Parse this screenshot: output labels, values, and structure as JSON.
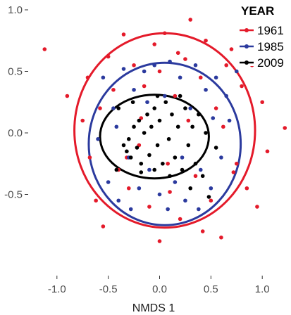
{
  "chart_data": {
    "type": "scatter",
    "title": "",
    "xlabel": "NMDS 1",
    "ylabel": "",
    "xlim": [
      -1.28,
      1.28
    ],
    "ylim": [
      -1.16,
      1.08
    ],
    "x_ticks": [
      -1.0,
      -0.5,
      0.0,
      0.5,
      1.0
    ],
    "x_tick_labels": [
      "-1.0",
      "-0.5",
      "0.0",
      "0.5",
      "1.0"
    ],
    "y_ticks": [
      1.0,
      0.5,
      0.0,
      -0.5
    ],
    "y_tick_labels": [
      "1.0",
      "0.5",
      "0.0",
      "-0.5"
    ],
    "grid": false,
    "legend": {
      "title": "YEAR",
      "position": "top-right",
      "entries": [
        "1961",
        "1985",
        "2009"
      ]
    },
    "series": [
      {
        "name": "1961",
        "color": "#e41a2a",
        "ellipse": {
          "cx": 0.05,
          "cy": 0.02,
          "rx": 0.88,
          "ry": 0.79
        },
        "points": [
          [
            -1.12,
            0.68
          ],
          [
            -0.9,
            0.3
          ],
          [
            -0.75,
            0.1
          ],
          [
            -0.7,
            0.45
          ],
          [
            -0.62,
            -0.55
          ],
          [
            -0.55,
            -0.76
          ],
          [
            -0.5,
            0.62
          ],
          [
            -0.45,
            0.35
          ],
          [
            -0.4,
            -0.3
          ],
          [
            -0.35,
            0.8
          ],
          [
            -0.3,
            -0.45
          ],
          [
            -0.25,
            0.55
          ],
          [
            -0.2,
            -0.1
          ],
          [
            -0.15,
            0.38
          ],
          [
            -0.1,
            -0.6
          ],
          [
            -0.05,
            0.72
          ],
          [
            0.0,
            0.5
          ],
          [
            0.05,
            0.81
          ],
          [
            0.1,
            -0.48
          ],
          [
            0.15,
            0.3
          ],
          [
            0.2,
            -0.7
          ],
          [
            0.25,
            0.6
          ],
          [
            0.3,
            0.92
          ],
          [
            0.35,
            -0.35
          ],
          [
            0.4,
            0.45
          ],
          [
            0.45,
            0.75
          ],
          [
            0.5,
            -0.55
          ],
          [
            0.55,
            0.2
          ],
          [
            0.6,
            -0.85
          ],
          [
            0.65,
            0.55
          ],
          [
            0.7,
            0.68
          ],
          [
            0.75,
            -0.25
          ],
          [
            0.8,
            0.38
          ],
          [
            0.85,
            -0.45
          ],
          [
            0.9,
            0.55
          ],
          [
            0.95,
            -0.6
          ],
          [
            1.0,
            0.25
          ],
          [
            1.05,
            -0.15
          ],
          [
            1.22,
            0.04
          ],
          [
            -0.32,
            -0.2
          ],
          [
            -0.18,
            0.12
          ],
          [
            0.08,
            -0.25
          ],
          [
            0.28,
            0.1
          ],
          [
            0.62,
            0.05
          ],
          [
            0.72,
            -0.32
          ],
          [
            -0.58,
            0.2
          ],
          [
            -0.68,
            -0.2
          ],
          [
            0.18,
            0.65
          ],
          [
            0.42,
            -0.8
          ],
          [
            0.0,
            -0.88
          ]
        ]
      },
      {
        "name": "1985",
        "color": "#2b3a9e",
        "ellipse": {
          "cx": 0.05,
          "cy": -0.09,
          "rx": 0.74,
          "ry": 0.66
        },
        "points": [
          [
            -0.55,
            0.45
          ],
          [
            -0.5,
            -0.4
          ],
          [
            -0.45,
            0.2
          ],
          [
            -0.4,
            -0.55
          ],
          [
            -0.35,
            0.52
          ],
          [
            -0.3,
            -0.2
          ],
          [
            -0.25,
            0.35
          ],
          [
            -0.2,
            -0.45
          ],
          [
            -0.15,
            0.5
          ],
          [
            -0.1,
            -0.3
          ],
          [
            -0.05,
            0.55
          ],
          [
            0.0,
            -0.5
          ],
          [
            0.05,
            0.3
          ],
          [
            0.1,
            0.58
          ],
          [
            0.15,
            -0.4
          ],
          [
            0.2,
            0.45
          ],
          [
            0.25,
            -0.55
          ],
          [
            0.3,
            0.2
          ],
          [
            0.35,
            0.55
          ],
          [
            0.4,
            -0.3
          ],
          [
            0.45,
            0.35
          ],
          [
            0.5,
            -0.45
          ],
          [
            0.55,
            0.45
          ],
          [
            0.6,
            -0.2
          ],
          [
            0.65,
            0.3
          ],
          [
            -0.6,
            -0.05
          ],
          [
            -0.42,
            0.05
          ],
          [
            -0.28,
            -0.62
          ],
          [
            0.08,
            -0.62
          ],
          [
            0.52,
            0.12
          ],
          [
            0.68,
            0.1
          ],
          [
            0.38,
            -0.62
          ],
          [
            -0.12,
            0.25
          ],
          [
            0.22,
            -0.2
          ],
          [
            0.75,
            0.5
          ]
        ]
      },
      {
        "name": "2009",
        "color": "#000000",
        "ellipse": {
          "cx": -0.05,
          "cy": -0.03,
          "rx": 0.53,
          "ry": 0.34
        },
        "points": [
          [
            -0.35,
            -0.1
          ],
          [
            -0.32,
            -0.15
          ],
          [
            -0.3,
            -0.05
          ],
          [
            -0.28,
            -0.2
          ],
          [
            -0.25,
            0.05
          ],
          [
            -0.22,
            -0.12
          ],
          [
            -0.2,
            0.1
          ],
          [
            -0.18,
            -0.25
          ],
          [
            -0.15,
            0.0
          ],
          [
            -0.12,
            0.15
          ],
          [
            -0.1,
            -0.18
          ],
          [
            -0.08,
            0.05
          ],
          [
            -0.05,
            0.2
          ],
          [
            -0.02,
            -0.1
          ],
          [
            0.0,
            0.1
          ],
          [
            0.03,
            -0.25
          ],
          [
            0.06,
            0.25
          ],
          [
            0.09,
            -0.05
          ],
          [
            0.12,
            0.15
          ],
          [
            0.15,
            -0.2
          ],
          [
            0.18,
            0.05
          ],
          [
            0.22,
            -0.3
          ],
          [
            0.25,
            0.2
          ],
          [
            0.28,
            -0.1
          ],
          [
            0.32,
            0.05
          ],
          [
            0.35,
            -0.25
          ],
          [
            0.38,
            0.15
          ],
          [
            0.42,
            -0.35
          ],
          [
            -0.4,
            0.2
          ],
          [
            -0.42,
            -0.3
          ],
          [
            -0.26,
            0.25
          ],
          [
            -0.02,
            0.3
          ],
          [
            0.2,
            0.3
          ],
          [
            0.1,
            -0.35
          ],
          [
            -0.18,
            -0.32
          ],
          [
            0.3,
            -0.45
          ],
          [
            0.45,
            0.0
          ],
          [
            -0.05,
            -0.3
          ],
          [
            0.48,
            -0.52
          ],
          [
            0.55,
            -0.12
          ]
        ]
      }
    ]
  }
}
